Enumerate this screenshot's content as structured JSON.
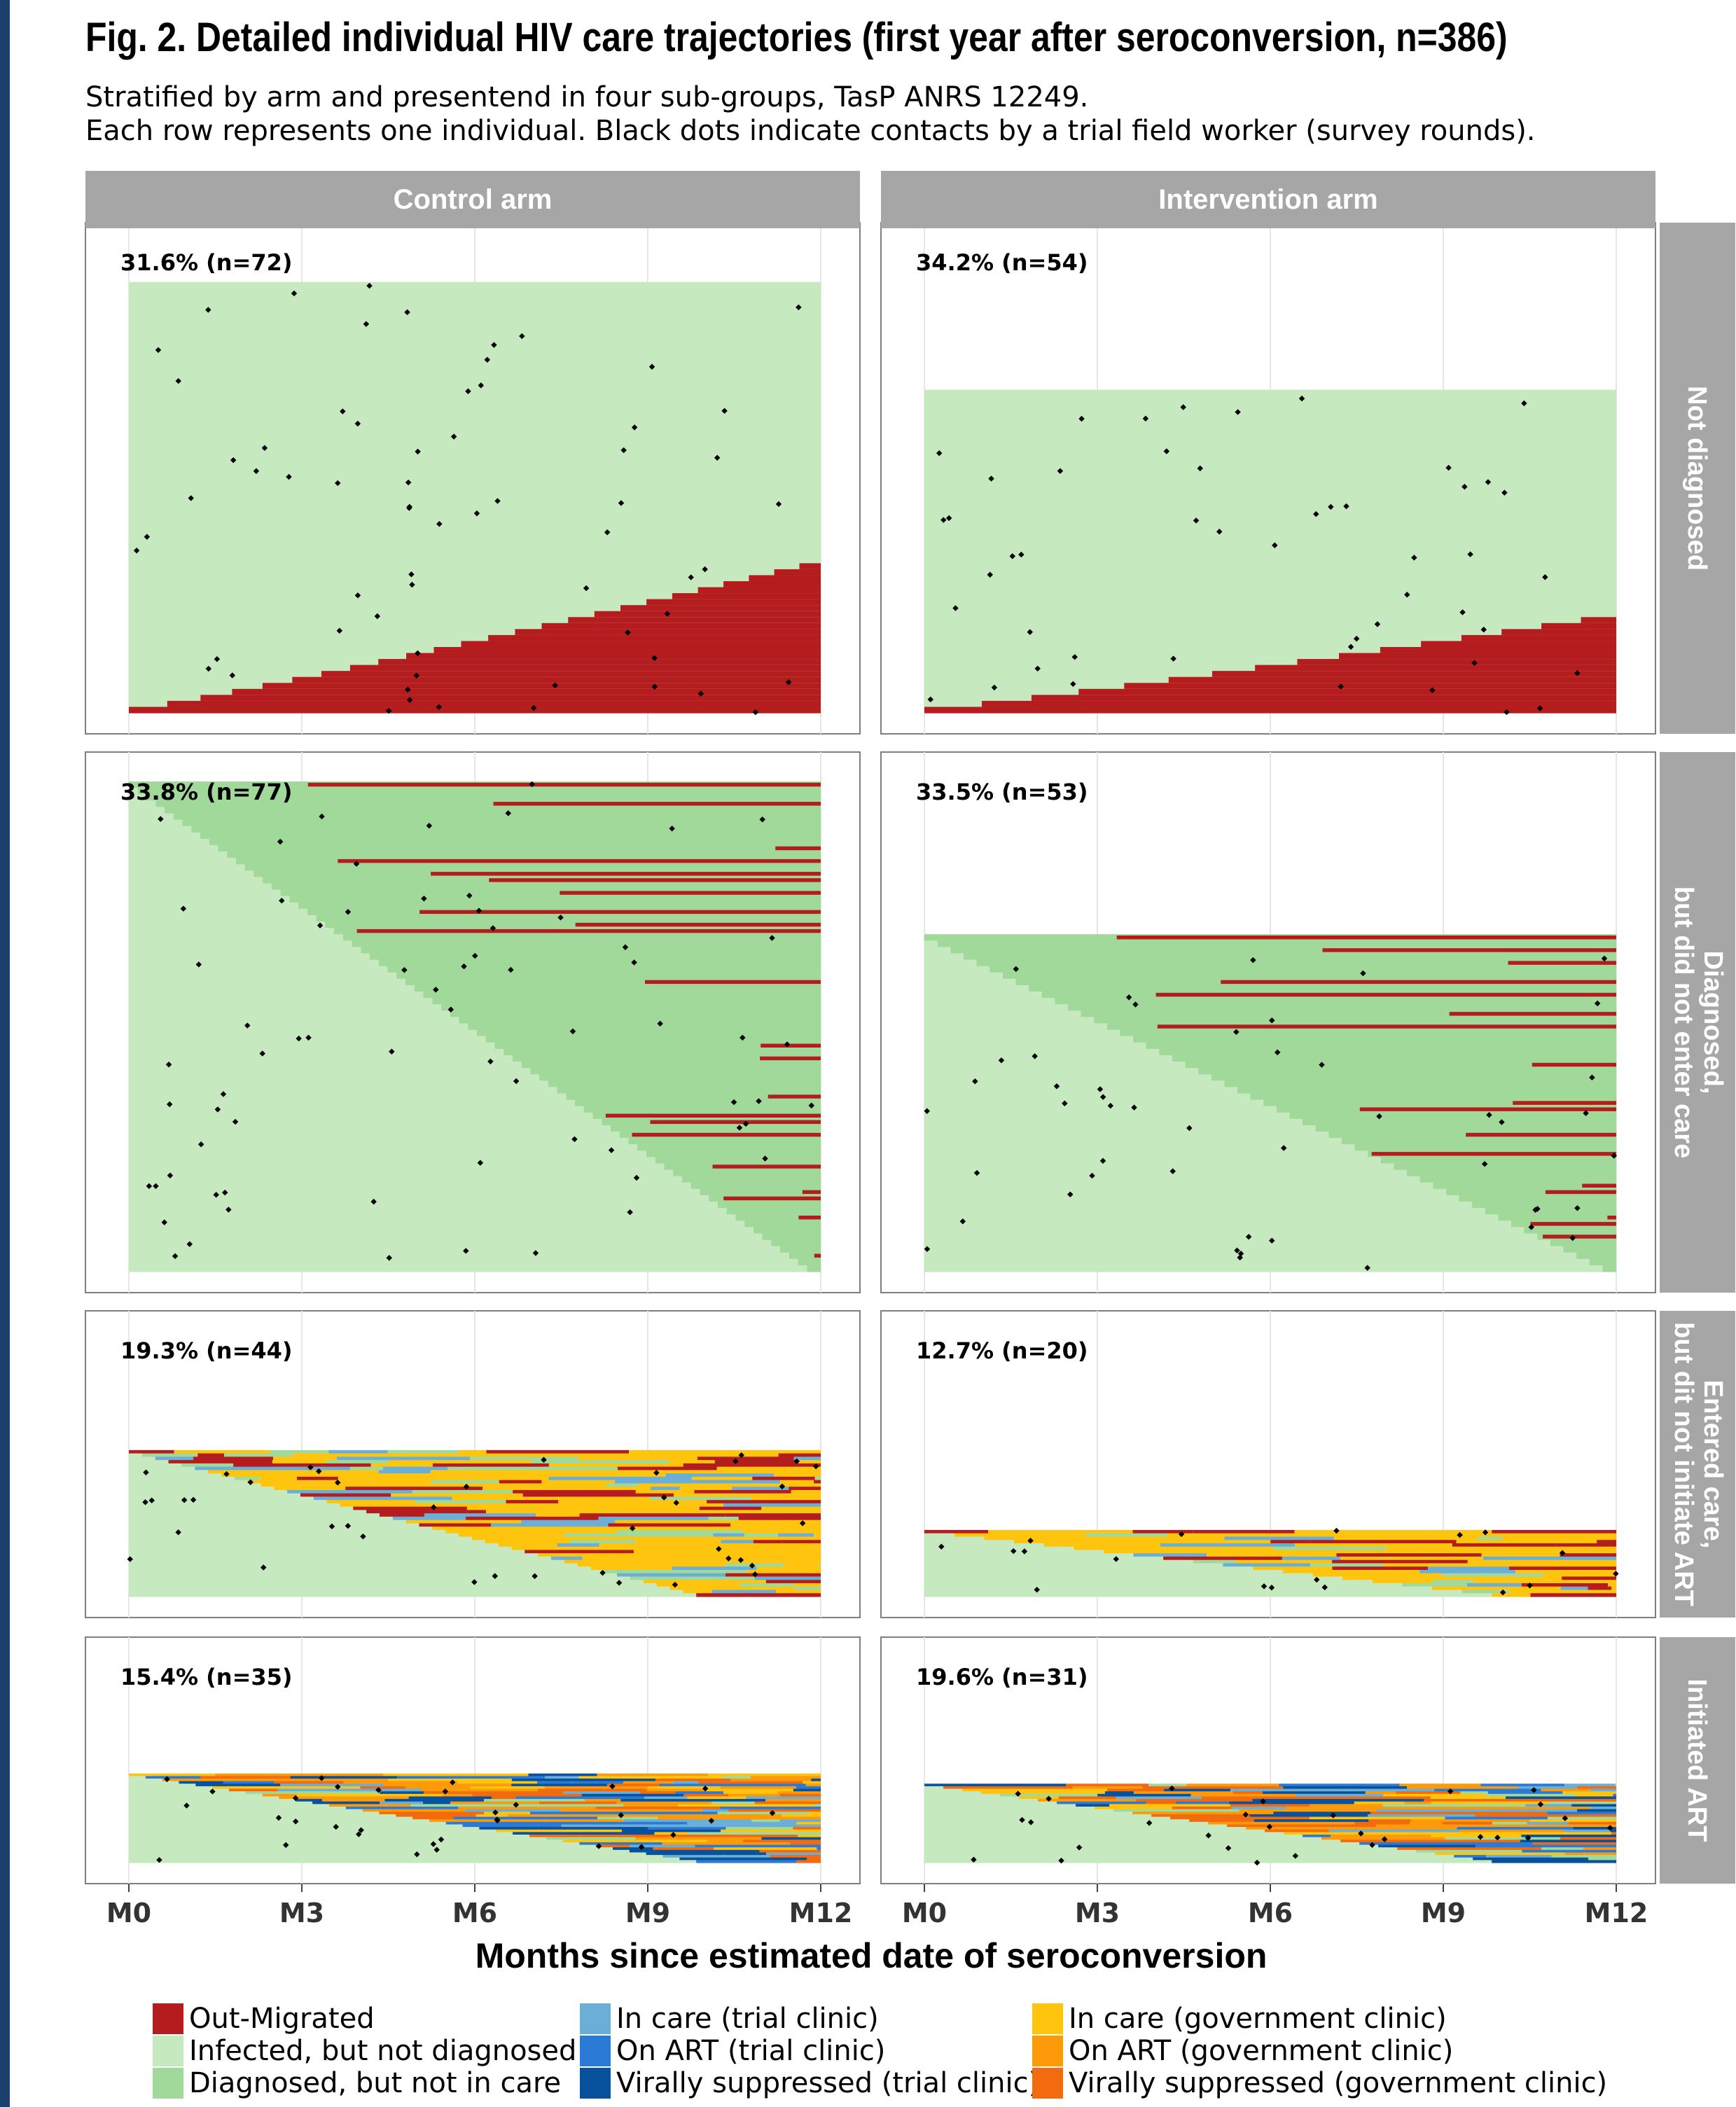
{
  "title": "Fig. 2. Detailed individual HIV care trajectories (first year after seroconversion, n=386)",
  "subtitle_lines": [
    "Stratified by arm and presentend in four sub-groups, TasP ANRS 12249.",
    "Each row represents one individual. Black dots indicate contacts by a trial field worker (survey rounds)."
  ],
  "chart_data": {
    "type": "timeline",
    "x_axis": {
      "label": "Months since estimated date of seroconversion",
      "ticks": [
        "M0",
        "M3",
        "M6",
        "M9",
        "M12"
      ],
      "tick_values": [
        0,
        3,
        6,
        9,
        12
      ],
      "range": [
        0,
        12
      ]
    },
    "columns": [
      "Control arm",
      "Intervention arm"
    ],
    "rows": [
      "Not diagnosed",
      "Diagnosed, but did not enter care",
      "Entered care, but dit not initiate ART",
      "Initiated ART"
    ],
    "panels": [
      {
        "arm": "Control arm",
        "group": "Not diagnosed",
        "label": "31.6% (n=72)",
        "percent": 31.6,
        "n": 72
      },
      {
        "arm": "Intervention arm",
        "group": "Not diagnosed",
        "label": "34.2% (n=54)",
        "percent": 34.2,
        "n": 54
      },
      {
        "arm": "Control arm",
        "group": "Diagnosed, but did not enter care",
        "label": "33.8% (n=77)",
        "percent": 33.8,
        "n": 77
      },
      {
        "arm": "Intervention arm",
        "group": "Diagnosed, but did not enter care",
        "label": "33.5% (n=53)",
        "percent": 33.5,
        "n": 53
      },
      {
        "arm": "Control arm",
        "group": "Entered care, but dit not initiate ART",
        "label": "19.3% (n=44)",
        "percent": 19.3,
        "n": 44
      },
      {
        "arm": "Intervention arm",
        "group": "Entered care, but dit not initiate ART",
        "label": "12.7% (n=20)",
        "percent": 12.7,
        "n": 20
      },
      {
        "arm": "Control arm",
        "group": "Initiated ART",
        "label": "15.4% (n=35)",
        "percent": 15.4,
        "n": 35
      },
      {
        "arm": "Intervention arm",
        "group": "Initiated ART",
        "label": "19.6% (n=31)",
        "percent": 19.6,
        "n": 31
      }
    ],
    "states": [
      {
        "name": "Out-Migrated",
        "color": "#b41c1e"
      },
      {
        "name": "Infected, but not diagnosed",
        "color": "#c7e9c0"
      },
      {
        "name": "Diagnosed, but not in care",
        "color": "#a1d99b"
      },
      {
        "name": "In care (trial clinic)",
        "color": "#6baed6"
      },
      {
        "name": "On ART (trial clinic)",
        "color": "#2b7bd6"
      },
      {
        "name": "Virally suppressed (trial clinic)",
        "color": "#08519c"
      },
      {
        "name": "In care (government clinic)",
        "color": "#fec40e"
      },
      {
        "name": "On ART (government clinic)",
        "color": "#fd9a0a"
      },
      {
        "name": "Virally suppressed (government clinic)",
        "color": "#f26b0f"
      }
    ],
    "contact_marker": "black dot",
    "legend_position": "bottom"
  }
}
